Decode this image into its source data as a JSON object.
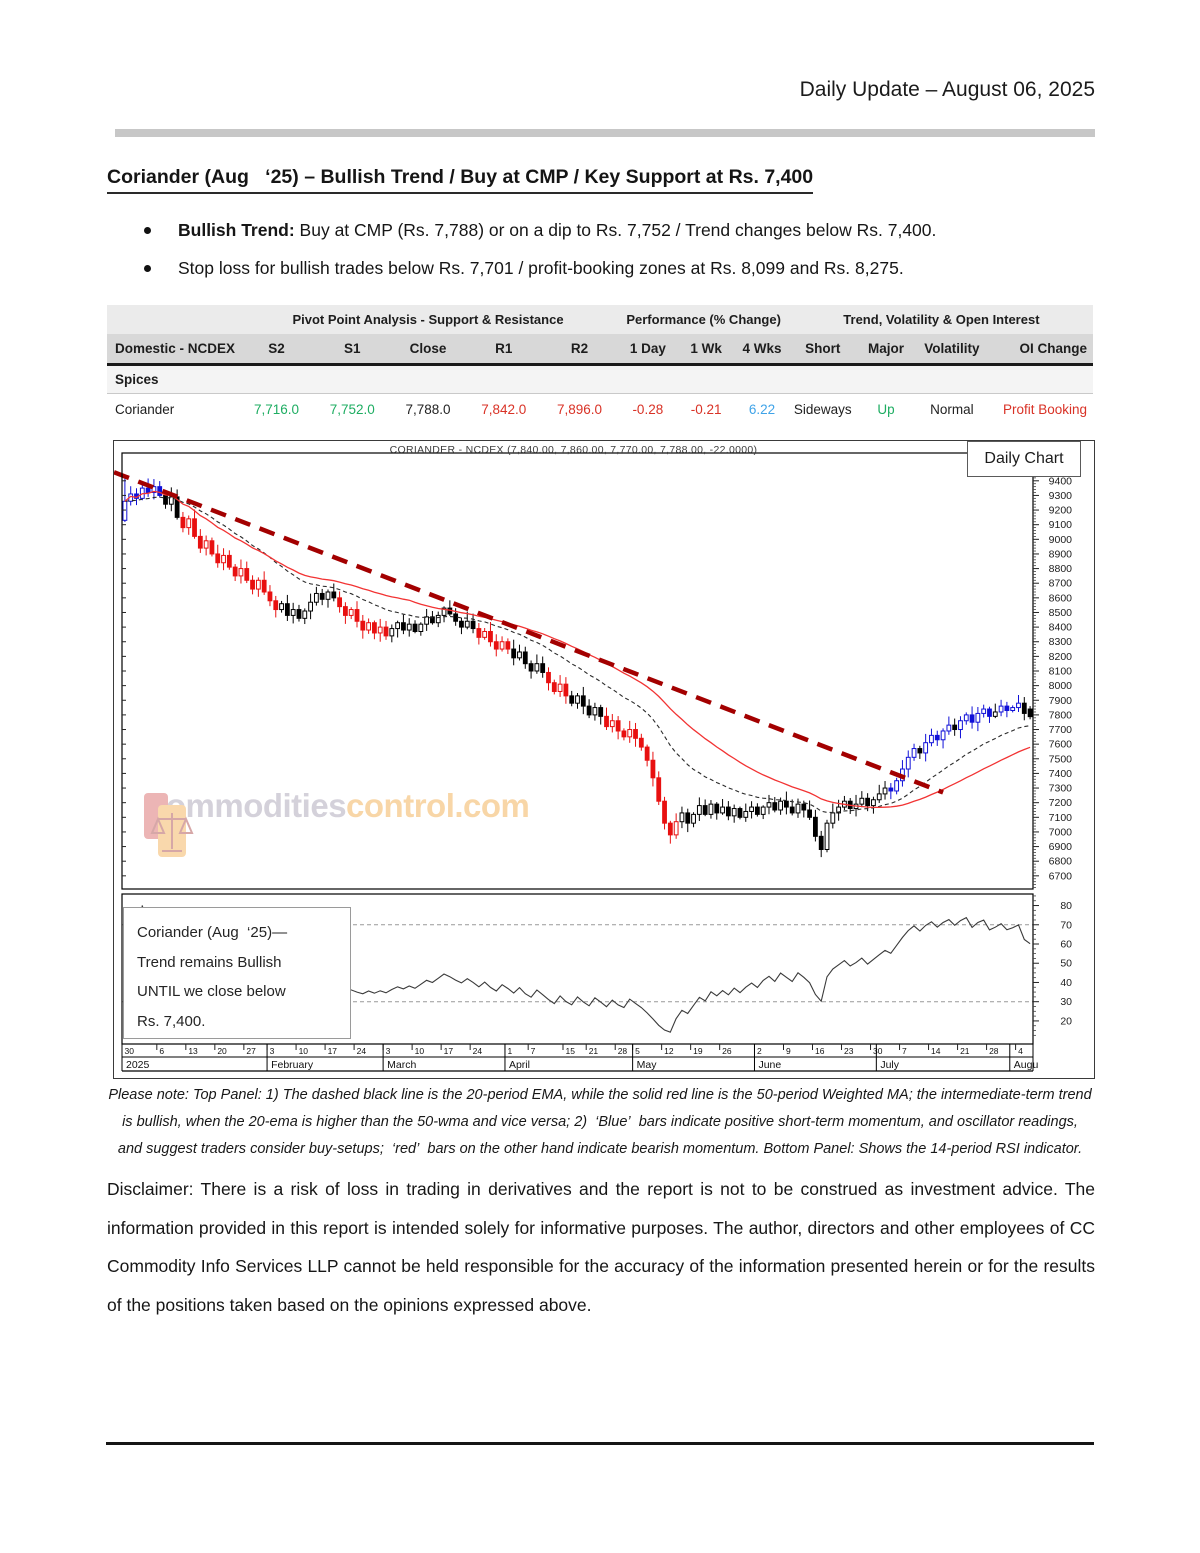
{
  "header": {
    "title": "Daily Update – August 06, 2025"
  },
  "report": {
    "heading": "Coriander (Aug   ‘25) – Bullish Trend / Buy at CMP / Key Support at Rs. 7,400",
    "bullets": [
      {
        "bold": "Bullish Trend:",
        "text": " Buy at CMP (Rs. 7,788) or on a dip to Rs. 7,752 / Trend changes below Rs. 7,400."
      },
      {
        "bold": "",
        "text": "Stop loss for bullish trades below Rs. 7,701 / profit-booking zones at Rs. 8,099 and Rs. 8,275."
      }
    ]
  },
  "table": {
    "groups": [
      {
        "label": "",
        "span": 1
      },
      {
        "label": "Pivot Point Analysis - Support & Resistance",
        "span": 5
      },
      {
        "label": "Performance (% Change)",
        "span": 3
      },
      {
        "label": "Trend, Volatility & Open Interest",
        "span": 4
      }
    ],
    "columns": [
      "Domestic - NCDEX",
      "S2",
      "S1",
      "Close",
      "R1",
      "R2",
      "1 Day",
      "1 Wk",
      "4 Wks",
      "Short",
      "Major",
      "Volatility",
      "OI Change"
    ],
    "section": "Spices",
    "rows": [
      {
        "name": "Coriander",
        "cells": [
          {
            "v": "7,716.0",
            "c": "green"
          },
          {
            "v": "7,752.0",
            "c": "green"
          },
          {
            "v": "7,788.0",
            "c": "dark"
          },
          {
            "v": "7,842.0",
            "c": "red"
          },
          {
            "v": "7,896.0",
            "c": "red"
          },
          {
            "v": "-0.28",
            "c": "red"
          },
          {
            "v": "-0.21",
            "c": "red"
          },
          {
            "v": "6.22",
            "c": "blue"
          },
          {
            "v": "Sideways",
            "c": "dark"
          },
          {
            "v": "Up",
            "c": "green"
          },
          {
            "v": "Normal",
            "c": "dark"
          },
          {
            "v": "Profit Booking",
            "c": "red"
          }
        ]
      }
    ]
  },
  "chart_overlays": {
    "title": "CORIANDER - NCDEX (7,840.00, 7,860.00, 7,770.00, 7,788.00, -22.0000)",
    "panel_label": "Daily Chart",
    "annotation": [
      "Coriander (Aug  ‘25)—",
      "Trend remains Bullish",
      "UNTIL we close below",
      "Rs. 7,400."
    ],
    "watermark": {
      "part1": "commodities",
      "part2": "control.com"
    }
  },
  "chart_data": {
    "type": "candlestick+rsi",
    "title": "CORIANDER - NCDEX (7,840.00, 7,860.00, 7,770.00, 7,788.00, -22.0000)",
    "ema_period": 20,
    "wma_period": 50,
    "rsi_period": 14,
    "price_ticks": {
      "min": 6700,
      "max": 9400,
      "step": 100
    },
    "rsi_ticks": [
      80,
      70,
      60,
      50,
      40,
      30,
      20
    ],
    "rsi_levels": [
      70,
      30
    ],
    "closes": [
      9260,
      9310,
      9280,
      9350,
      9320,
      9360,
      9300,
      9240,
      9290,
      9150,
      9080,
      9140,
      9020,
      8940,
      8990,
      8900,
      8840,
      8890,
      8810,
      8750,
      8800,
      8720,
      8660,
      8720,
      8640,
      8580,
      8520,
      8560,
      8480,
      8520,
      8460,
      8510,
      8570,
      8630,
      8590,
      8640,
      8600,
      8540,
      8480,
      8520,
      8440,
      8380,
      8430,
      8360,
      8400,
      8340,
      8390,
      8430,
      8380,
      8420,
      8370,
      8420,
      8470,
      8430,
      8480,
      8530,
      8490,
      8440,
      8400,
      8440,
      8390,
      8330,
      8370,
      8300,
      8250,
      8300,
      8250,
      8190,
      8230,
      8150,
      8100,
      8150,
      8090,
      8020,
      7960,
      8010,
      7930,
      7880,
      7930,
      7860,
      7800,
      7850,
      7790,
      7720,
      7760,
      7690,
      7650,
      7700,
      7640,
      7580,
      7490,
      7370,
      7210,
      7060,
      6980,
      7070,
      7130,
      7060,
      7120,
      7180,
      7120,
      7190,
      7130,
      7170,
      7110,
      7160,
      7100,
      7140,
      7170,
      7120,
      7170,
      7200,
      7150,
      7210,
      7170,
      7130,
      7190,
      7150,
      7100,
      6970,
      6880,
      7060,
      7130,
      7170,
      7210,
      7160,
      7190,
      7230,
      7180,
      7220,
      7260,
      7300,
      7280,
      7350,
      7430,
      7510,
      7570,
      7540,
      7610,
      7660,
      7630,
      7690,
      7730,
      7700,
      7760,
      7800,
      7750,
      7810,
      7840,
      7790,
      7820,
      7860,
      7830,
      7850,
      7880,
      7810,
      7788
    ],
    "last_bar": {
      "open": 7840,
      "high": 7860,
      "low": 7770,
      "close": 7788
    },
    "color_segments": [
      [
        0,
        6,
        "B"
      ],
      [
        7,
        9,
        "K"
      ],
      [
        10,
        26,
        "R"
      ],
      [
        27,
        36,
        "K"
      ],
      [
        37,
        45,
        "R"
      ],
      [
        46,
        60,
        "K"
      ],
      [
        61,
        66,
        "R"
      ],
      [
        67,
        72,
        "K"
      ],
      [
        73,
        76,
        "R"
      ],
      [
        77,
        82,
        "K"
      ],
      [
        83,
        95,
        "R"
      ],
      [
        96,
        131,
        "K"
      ],
      [
        132,
        136,
        "B"
      ],
      [
        137,
        137,
        "K"
      ],
      [
        138,
        142,
        "B"
      ],
      [
        143,
        143,
        "K"
      ],
      [
        144,
        149,
        "B"
      ],
      [
        150,
        150,
        "K"
      ],
      [
        151,
        154,
        "B"
      ],
      [
        155,
        156,
        "K"
      ]
    ],
    "months": [
      [
        "2025",
        0
      ],
      [
        "February",
        25
      ],
      [
        "March",
        45
      ],
      [
        "April",
        66
      ],
      [
        "May",
        88
      ],
      [
        "June",
        109
      ],
      [
        "July",
        130
      ],
      [
        "Augu",
        153
      ]
    ],
    "day_ticks": [
      [
        "30",
        0
      ],
      [
        "6",
        6
      ],
      [
        "13",
        11
      ],
      [
        "20",
        16
      ],
      [
        "27",
        21
      ],
      [
        "3",
        25
      ],
      [
        "10",
        30
      ],
      [
        "17",
        35
      ],
      [
        "24",
        40
      ],
      [
        "3",
        45
      ],
      [
        "10",
        50
      ],
      [
        "17",
        55
      ],
      [
        "24",
        60
      ],
      [
        "1",
        66
      ],
      [
        "7",
        70
      ],
      [
        "15",
        76
      ],
      [
        "21",
        80
      ],
      [
        "28",
        85
      ],
      [
        "5",
        88
      ],
      [
        "12",
        93
      ],
      [
        "19",
        98
      ],
      [
        "26",
        103
      ],
      [
        "2",
        109
      ],
      [
        "9",
        114
      ],
      [
        "16",
        119
      ],
      [
        "23",
        124
      ],
      [
        "30",
        129
      ],
      [
        "7",
        134
      ],
      [
        "14",
        139
      ],
      [
        "21",
        144
      ],
      [
        "28",
        149
      ],
      [
        "4",
        154
      ]
    ],
    "trendline": {
      "from_bar": 0,
      "from_price": 9430,
      "to_bar": 141,
      "to_price": 7270
    },
    "colors": {
      "momentum_up": "#1010d8",
      "momentum_down": "#e81010",
      "neutral": "#000000",
      "ema": "#2a2a2a",
      "wma": "#f23333",
      "trend": "#a30000",
      "rsi": "#3a3a3a",
      "rsi_level": "#999999"
    }
  },
  "notes": {
    "lines": [
      "Please note: Top Panel: 1) The dashed black line is the 20-period EMA, while the solid red line is the 50-period Weighted MA; the intermediate-term trend",
      "is bullish, when the 20-ema is higher than the 50-wma and vice versa; 2)  ‘Blue’  bars indicate positive short-term momentum, and oscillator readings,",
      "and suggest traders consider buy-setups;  ‘red’  bars on the other hand indicate bearish momentum. Bottom Panel: Shows the 14-period RSI indicator."
    ]
  },
  "disclaimer": {
    "text": "Disclaimer: There is a risk of loss in trading in derivatives and the report is not to be construed as investment advice. The information provided in this report is intended solely for informative purposes. The author, directors and other employees of CC Commodity Info Services LLP cannot be held responsible for the accuracy of the information presented herein or for the results of the positions taken based on the opinions expressed above."
  }
}
